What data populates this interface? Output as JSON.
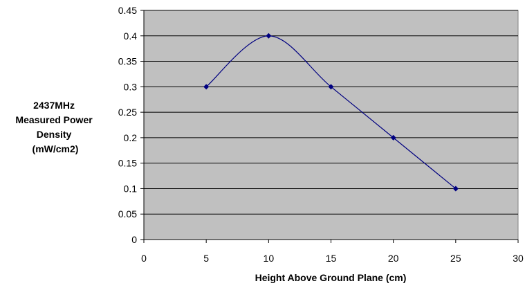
{
  "chart_data": {
    "type": "line",
    "title": "",
    "xlabel": "Height Above Ground Plane (cm)",
    "ylabel": [
      "2437MHz",
      "Measured Power",
      "Density",
      "(mW/cm2)"
    ],
    "xlim": [
      0,
      30
    ],
    "ylim": [
      0,
      0.45
    ],
    "x_ticks": [
      "0",
      "5",
      "10",
      "15",
      "20",
      "25",
      "30"
    ],
    "y_ticks": [
      "0",
      "0.05",
      "0.1",
      "0.15",
      "0.2",
      "0.25",
      "0.3",
      "0.35",
      "0.4",
      "0.45"
    ],
    "grid": "horizontal",
    "legend": "none",
    "series": [
      {
        "x": [
          5,
          10,
          15,
          20,
          25
        ],
        "y": [
          0.3,
          0.4,
          0.3,
          0.2,
          0.1
        ],
        "smooth": true
      }
    ],
    "colors": {
      "plot_background": "#c0c0c0",
      "line": "#000080",
      "marker": "#000080",
      "gridline": "#000000"
    }
  }
}
